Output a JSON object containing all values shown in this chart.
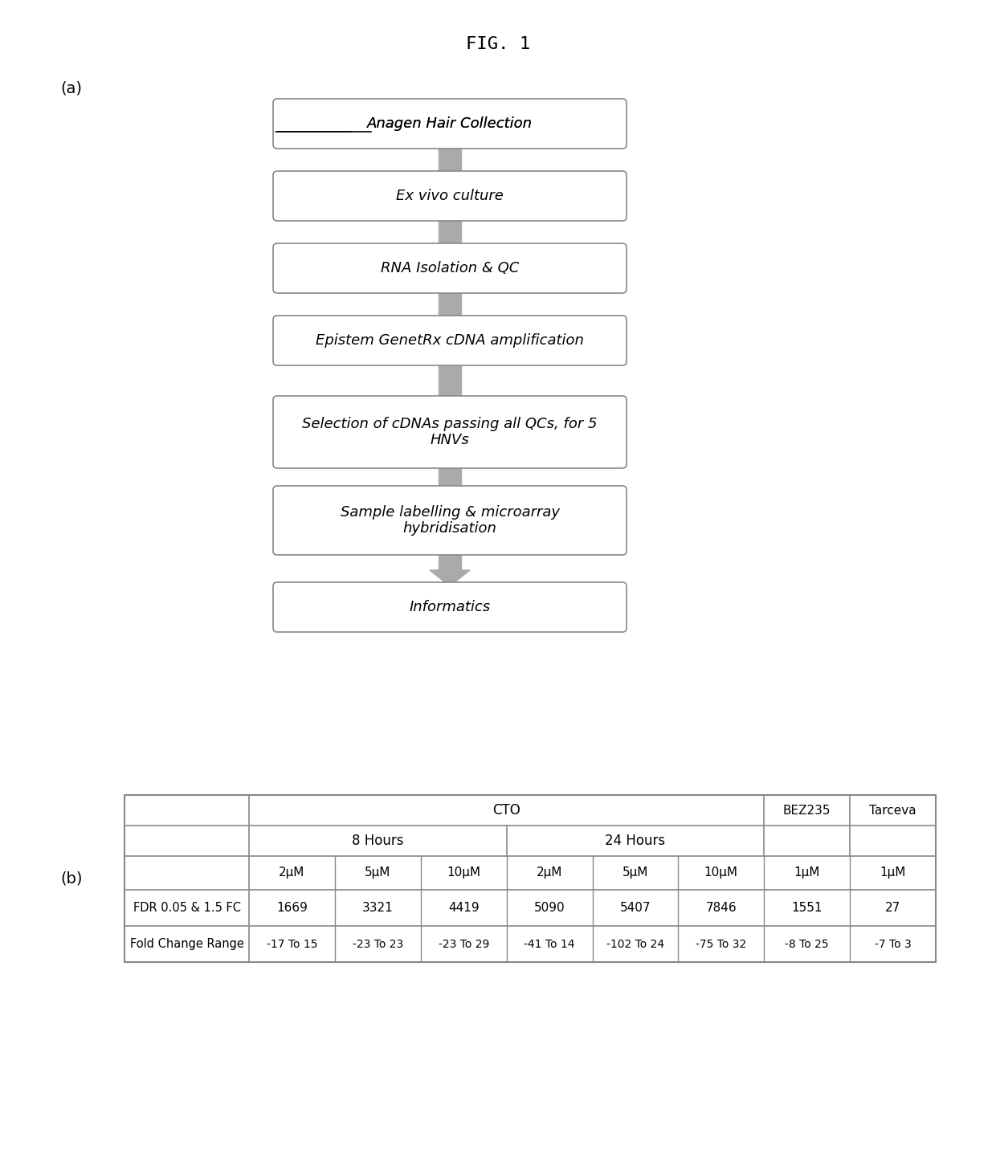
{
  "title": "FIG. 1",
  "panel_a_label": "(a)",
  "panel_b_label": "(b)",
  "flowchart_boxes": [
    "Anagen Hair Collection",
    "Ex vivo culture",
    "RNA Isolation & QC",
    "Epistem GenetRx cDNA amplification",
    "Selection of cDNAs passing all QCs, for 5\nHNVs",
    "Sample labelling & microarray\nhybridisation",
    "Informatics"
  ],
  "flowchart_box1_underline": "Anagen",
  "table_header_row1": [
    "CTO",
    "",
    "",
    "",
    "",
    "",
    "BEZ235",
    "Tarceva"
  ],
  "table_header_row2": [
    "8 Hours",
    "",
    "",
    "24 Hours",
    "",
    "",
    "",
    ""
  ],
  "table_header_row3": [
    "2μM",
    "5μM",
    "10μM",
    "2μM",
    "5μM",
    "10μM",
    "1μM",
    "1μM"
  ],
  "table_row1_label": "FDR 0.05 & 1.5 FC",
  "table_row1_data": [
    "1669",
    "3321",
    "4419",
    "5090",
    "5407",
    "7846",
    "1551",
    "27"
  ],
  "table_row2_label": "Fold Change Range",
  "table_row2_data": [
    "-17 To 15",
    "-23 To 23",
    "-23 To 29",
    "-41 To 14",
    "-102 To 24",
    "-75 To 32",
    "-8 To 25",
    "-7 To 3"
  ],
  "box_color": "#ffffff",
  "box_edge_color": "#888888",
  "arrow_color": "#aaaaaa",
  "table_border_color": "#888888",
  "bg_color": "#ffffff",
  "text_color": "#000000"
}
